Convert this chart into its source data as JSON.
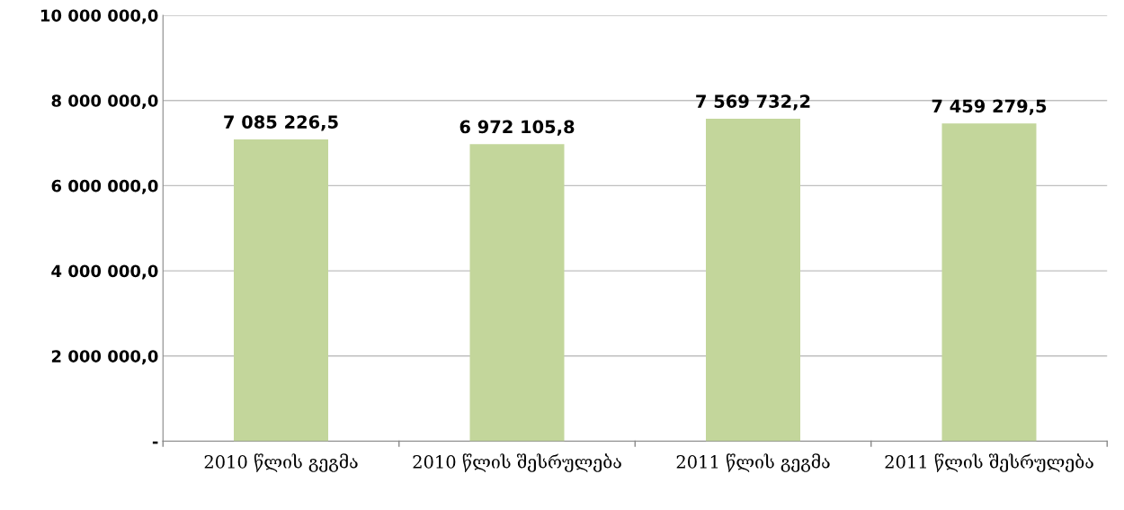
{
  "chart_data": {
    "type": "bar",
    "categories": [
      "2010 წლის გეგმა",
      "2010 წლის შესრულება",
      "2011 წლის გეგმა",
      "2011 წლის შესრულება"
    ],
    "values": [
      7085226.5,
      6972105.8,
      7569732.2,
      7459279.5
    ],
    "value_labels": [
      "7 085 226,5",
      "6 972 105,8",
      "7 569 732,2",
      "7 459 279,5"
    ],
    "color": "#c3d69b",
    "ylim": [
      0,
      10000000
    ],
    "yticks": [
      {
        "value": 0,
        "label": "-"
      },
      {
        "value": 2000000,
        "label": "2 000 000,0"
      },
      {
        "value": 4000000,
        "label": "4 000 000,0"
      },
      {
        "value": 6000000,
        "label": "6 000 000,0"
      },
      {
        "value": 8000000,
        "label": "8 000 000,0"
      },
      {
        "value": 10000000,
        "label": "10 000 000,0"
      }
    ],
    "grid": "y"
  }
}
